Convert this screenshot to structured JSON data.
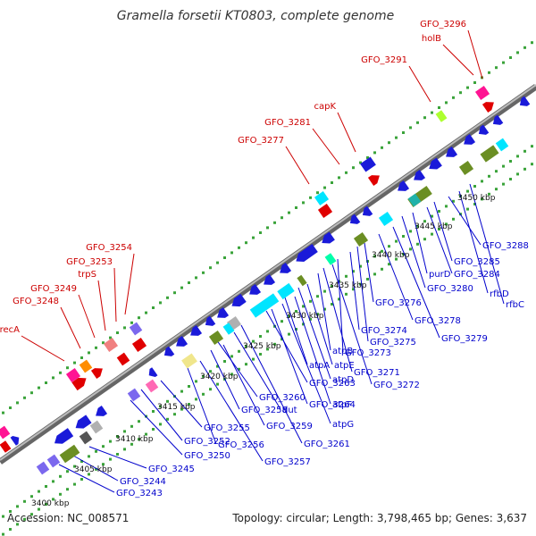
{
  "title": "Gramella forsetii KT0803, complete genome",
  "accession": "Accession: NC_008571",
  "summary": "Topology: circular; Length: 3,798,465 bp; Genes: 3,637",
  "colors": {
    "red_label": "#cc0000",
    "blue_label": "#0000cc",
    "backbone": "#888888",
    "dots": "#3aa33a"
  },
  "kbp_ticks": [
    "3400 kbp",
    "3405 kbp",
    "3410 kbp",
    "3415 kbp",
    "3420 kbp",
    "3425 kbp",
    "3430 kbp",
    "3435 kbp",
    "3440 kbp",
    "3445 kbp",
    "3450 kbp"
  ],
  "red_labels": [
    "recA",
    "GFO_3248",
    "GFO_3249",
    "trpS",
    "GFO_3253",
    "GFO_3254",
    "GFO_3277",
    "GFO_3281",
    "capK",
    "GFO_3291",
    "holB",
    "GFO_3296"
  ],
  "blue_labels": [
    "GFO_3243",
    "GFO_3244",
    "GFO_3245",
    "GFO_3250",
    "GFO_3252",
    "GFO_3255",
    "GFO_3256",
    "GFO_3257",
    "GFO_3258",
    "GFO_3259",
    "GFO_3260",
    "dut",
    "GFO_3261",
    "GFO_3263",
    "GFO_3264",
    "atpG",
    "atpF",
    "atpA",
    "atpD",
    "atpE",
    "atpB",
    "GFO_3271",
    "GFO_3272",
    "GFO_3273",
    "GFO_3274",
    "GFO_3275",
    "GFO_3276",
    "GFO_3278",
    "GFO_3279",
    "GFO_3280",
    "purD",
    "GFO_3284",
    "GFO_3285",
    "GFO_3288",
    "rfbD",
    "rfbC"
  ]
}
